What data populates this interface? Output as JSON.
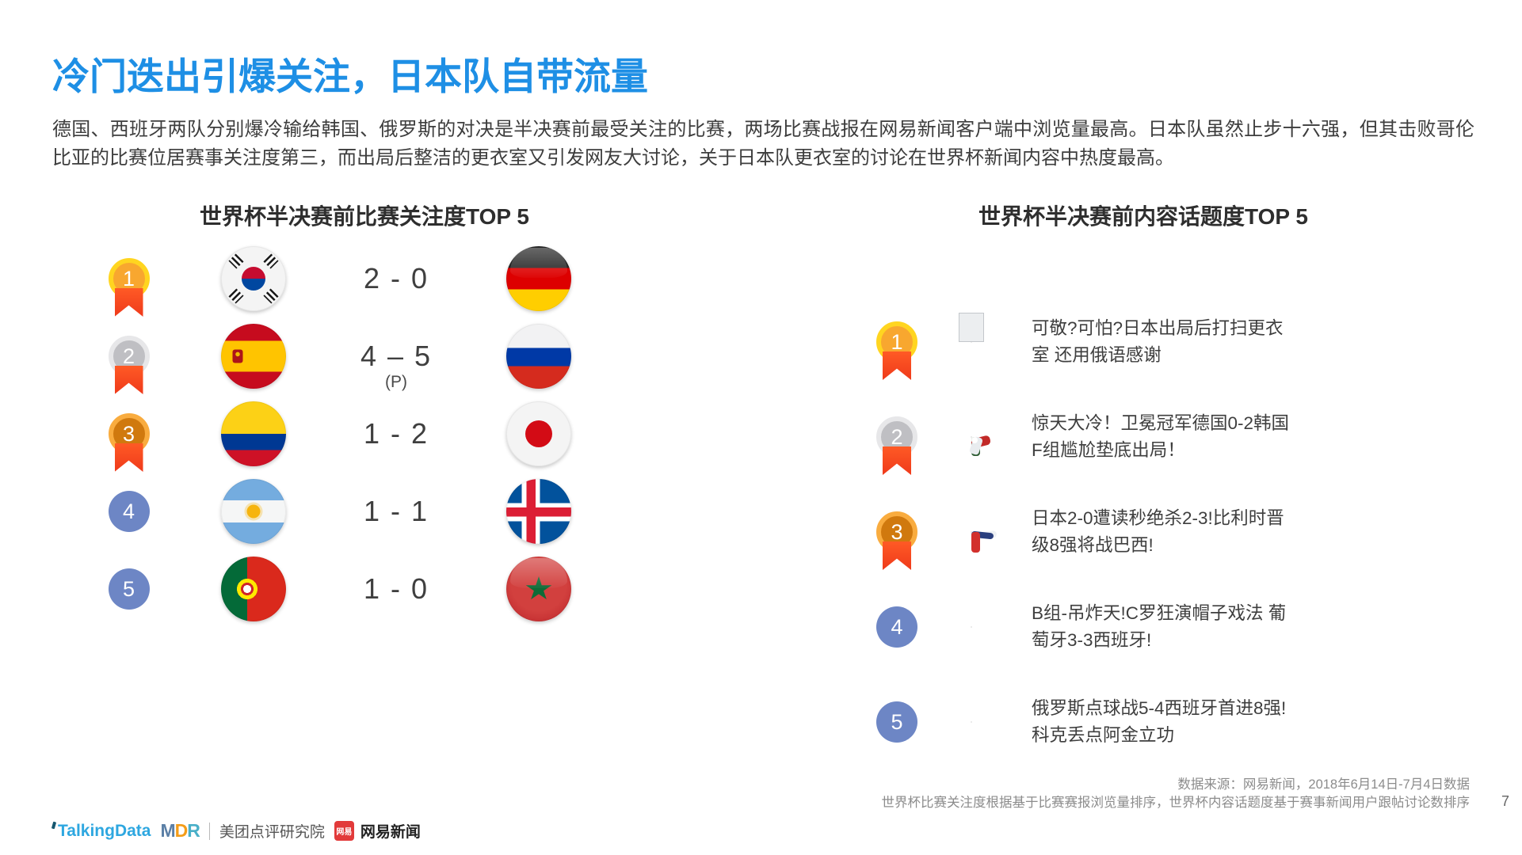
{
  "slide": {
    "title": "冷门迭出引爆关注，日本队自带流量",
    "body": "德国、西班牙两队分别爆冷输给韩国、俄罗斯的对决是半决赛前最受关注的比赛，两场比赛战报在网易新闻客户端中浏览量最高。日本队虽然止步十六强，但其击败哥伦比亚的比赛位居赛事关注度第三，而出局后整洁的更衣室又引发网友大讨论，关于日本队更衣室的讨论在世界杯新闻内容中热度最高。",
    "page_number": "7"
  },
  "left_panel": {
    "heading": "世界杯半决赛前比赛关注度TOP 5",
    "rows": [
      {
        "rank": "1",
        "medal": "gold",
        "home": {
          "flag": "kr",
          "country": "south-korea"
        },
        "score": "2 - 0",
        "note": "",
        "away": {
          "flag": "de",
          "country": "germany"
        }
      },
      {
        "rank": "2",
        "medal": "silver",
        "home": {
          "flag": "es",
          "country": "spain"
        },
        "score": "4 – 5",
        "note": "(P)",
        "away": {
          "flag": "ru",
          "country": "russia"
        }
      },
      {
        "rank": "3",
        "medal": "bronze",
        "home": {
          "flag": "co",
          "country": "colombia"
        },
        "score": "1 - 2",
        "note": "",
        "away": {
          "flag": "jp",
          "country": "japan"
        }
      },
      {
        "rank": "4",
        "medal": "plain",
        "home": {
          "flag": "ar",
          "country": "argentina"
        },
        "score": "1 - 1",
        "note": "",
        "away": {
          "flag": "is",
          "country": "iceland"
        }
      },
      {
        "rank": "5",
        "medal": "plain",
        "home": {
          "flag": "pt",
          "country": "portugal"
        },
        "score": "1 - 0",
        "note": "",
        "away": {
          "flag": "ma",
          "country": "morocco"
        }
      }
    ]
  },
  "right_panel": {
    "heading": "世界杯半决赛前内容话题度TOP 5",
    "rows": [
      {
        "rank": "1",
        "medal": "gold",
        "image": "locker-room",
        "headline": "可敬?可怕?日本出局后打扫更衣室 还用俄语感谢"
      },
      {
        "rank": "2",
        "medal": "silver",
        "image": "goal",
        "headline": "惊天大冷！卫冕冠军德国0-2韩国 F组尴尬垫底出局！"
      },
      {
        "rank": "3",
        "medal": "bronze",
        "image": "pitch",
        "headline": "日本2-0遭读秒绝杀2-3!比利时晋级8强将战巴西!"
      },
      {
        "rank": "4",
        "medal": "plain",
        "image": "fans",
        "headline": "B组-吊炸天!C罗狂演帽子戏法 葡萄牙3-3西班牙!"
      },
      {
        "rank": "5",
        "medal": "plain",
        "image": "celebration",
        "headline": "俄罗斯点球战5-4西班牙首进8强!科克丢点阿金立功"
      }
    ]
  },
  "footer": {
    "source_line1": "数据来源：网易新闻，2018年6月14日-7月4日数据",
    "source_line2": "世界杯比赛关注度根据基于比赛赛报浏览量排序，世界杯内容话题度基于赛事新闻用户跟帖讨论数排序",
    "logos": {
      "talkingdata": "TalkingData",
      "mdr": "MDR",
      "mdr_label": "美团点评研究院",
      "netease_badge": "网易",
      "netease_label": "网易新闻"
    }
  },
  "colors": {
    "title_blue": "#1E8FE5",
    "rank_plain_blue": "#6D86C5",
    "medal_gold_ring": "#FFD520",
    "medal_silver_ring": "#E7E7E9",
    "medal_bronze_ring": "#F9AC3F",
    "ribbon_red": "#FB4A1E",
    "text_dark": "#3d3d3d",
    "source_gray": "#8c8c8c"
  }
}
